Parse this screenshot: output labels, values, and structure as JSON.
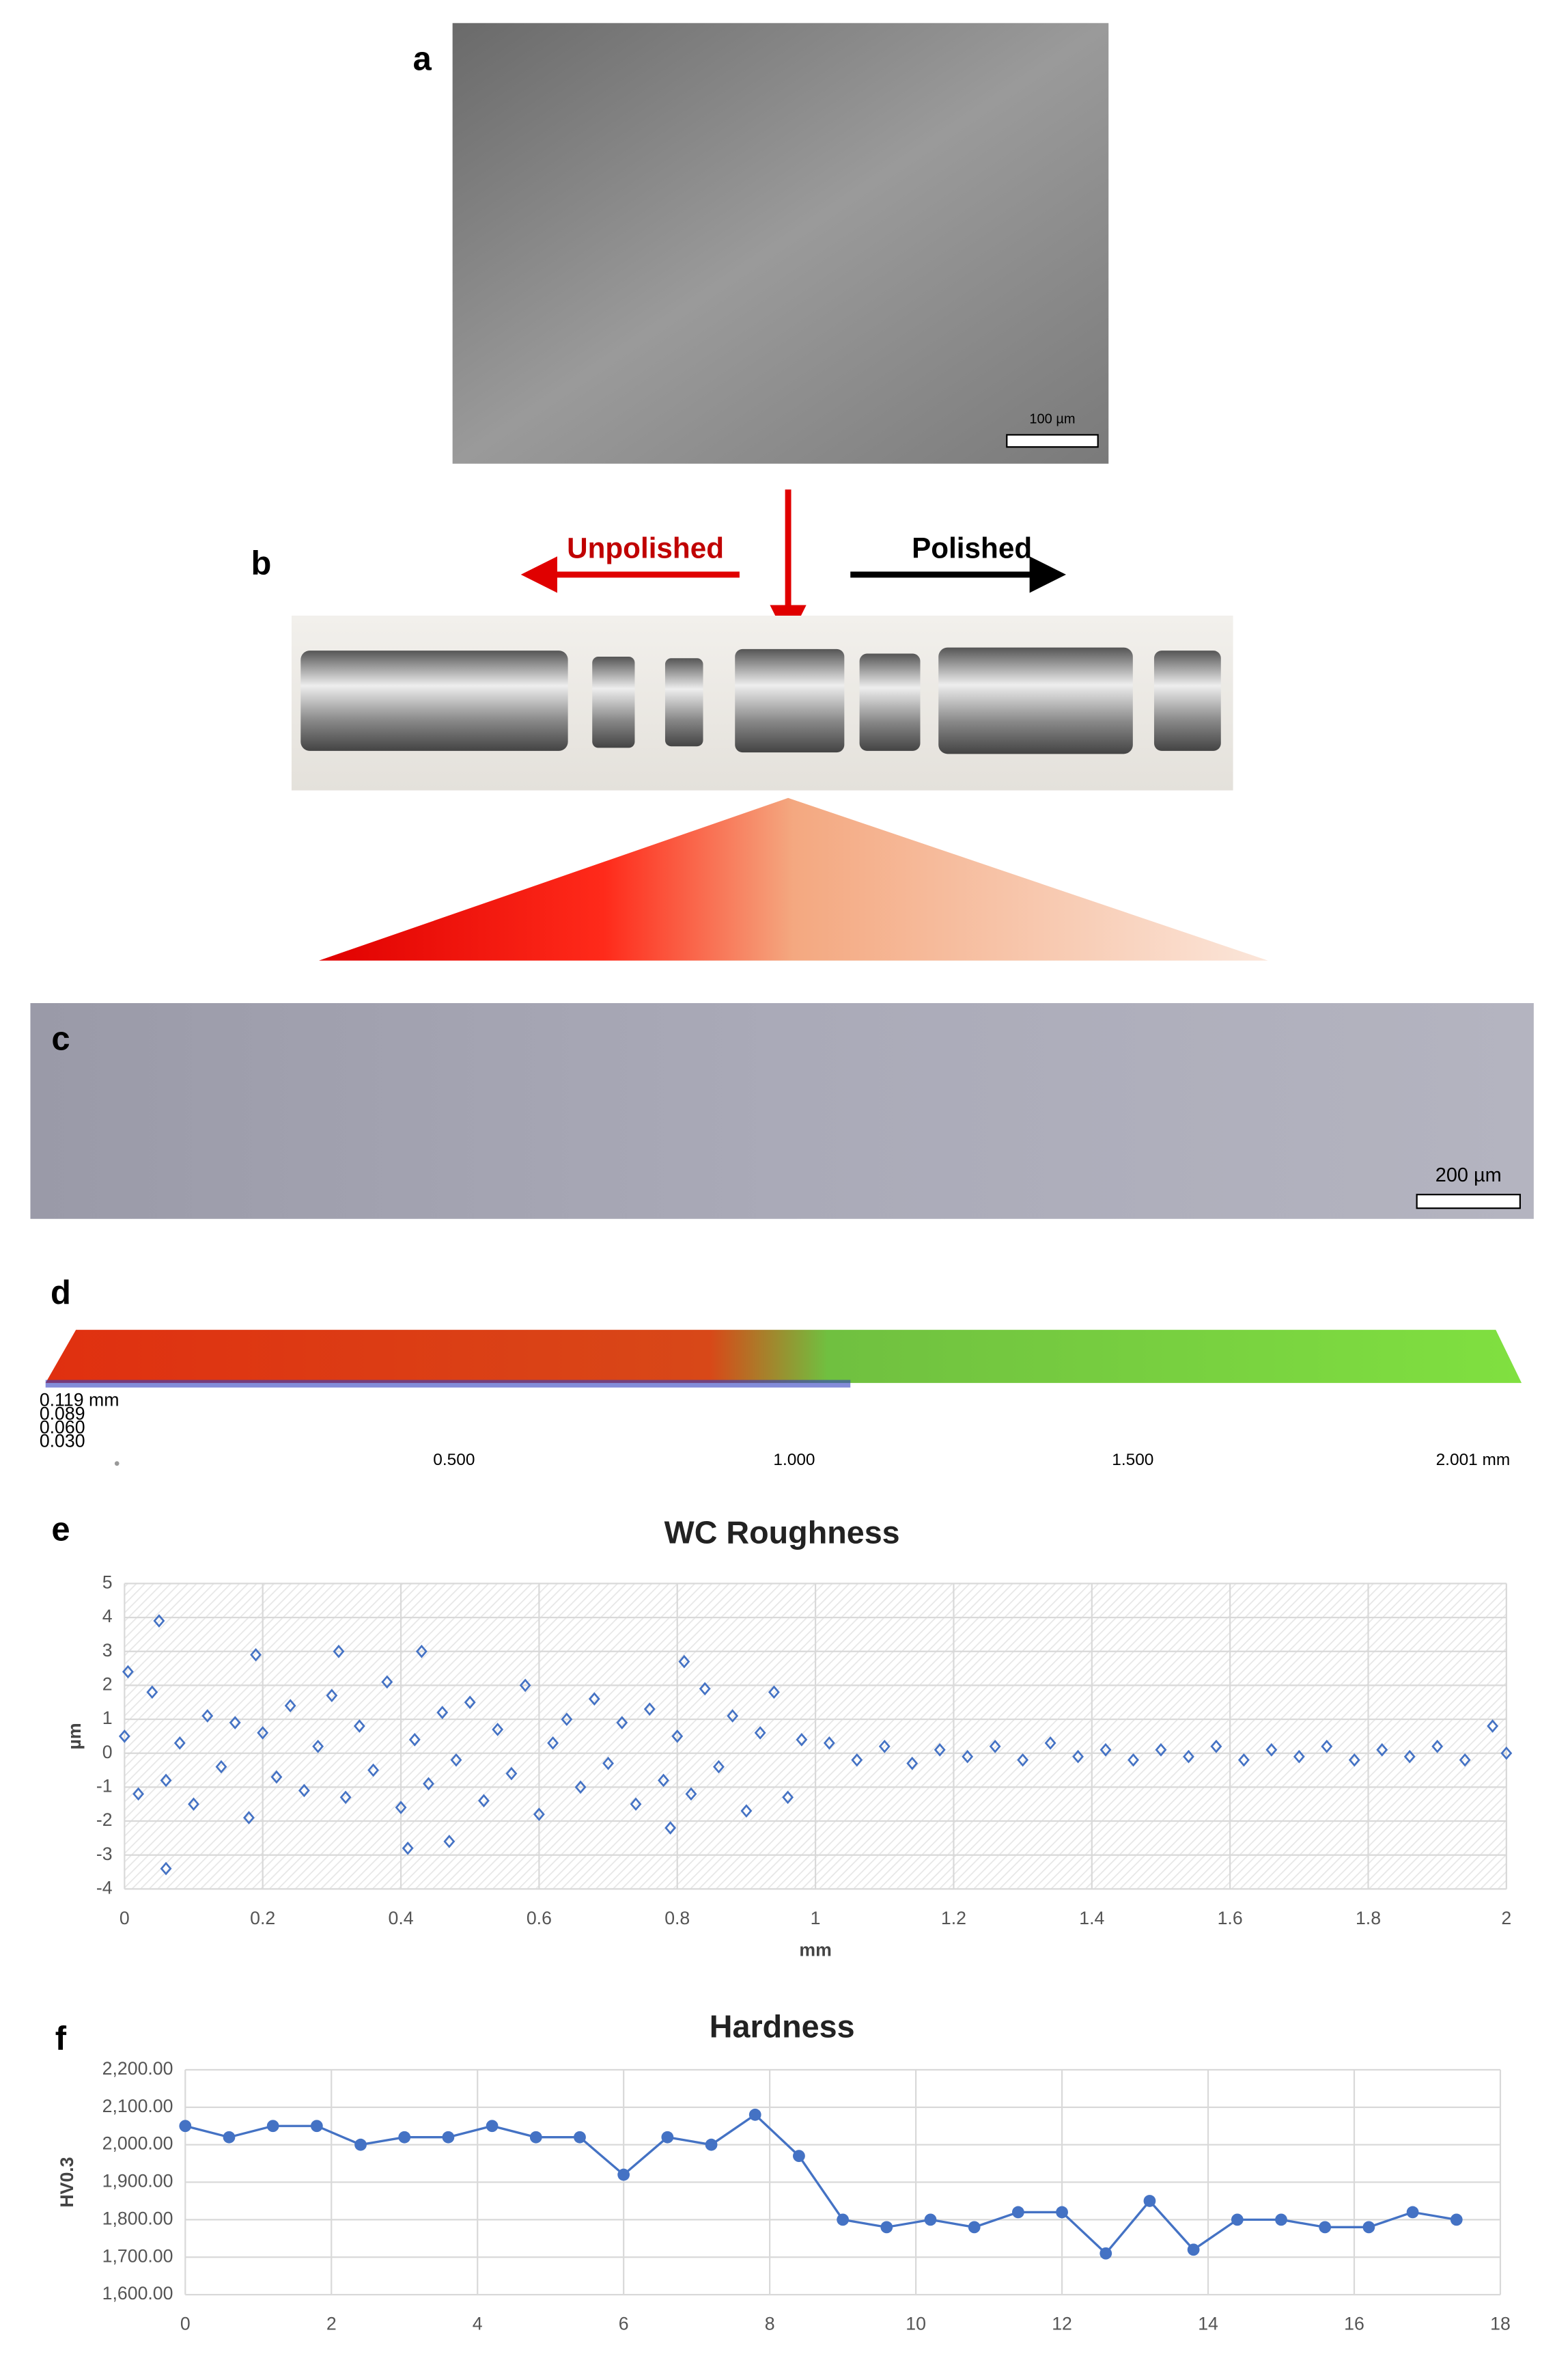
{
  "panels": {
    "a": "a",
    "b": "b",
    "c": "c",
    "d": "d",
    "e": "e",
    "f": "f",
    "scale_a": "100 µm",
    "unpolished": "Unpolished",
    "polished": "Polished",
    "scale_c": "200 µm"
  },
  "profile": {
    "z_labels": [
      "0.119 mm",
      "0.089",
      "0.060",
      "0.030"
    ],
    "x_labels": [
      "0.500",
      "1.000",
      "1.500",
      "2.001 mm"
    ]
  },
  "chart_data": [
    {
      "type": "scatter",
      "title": "WC Roughness",
      "xlabel": "mm",
      "ylabel": "µm",
      "color": "#4472c4",
      "grid": true,
      "x": [
        0,
        0.02,
        0.04,
        0.06,
        0.08,
        0.1,
        0.12,
        0.14,
        0.16,
        0.18,
        0.2,
        0.22,
        0.24,
        0.26,
        0.28,
        0.3,
        0.32,
        0.34,
        0.36,
        0.38,
        0.4,
        0.42,
        0.44,
        0.46,
        0.48,
        0.5,
        0.52,
        0.54,
        0.56,
        0.58,
        0.6,
        0.62,
        0.64,
        0.66,
        0.68,
        0.7,
        0.72,
        0.74,
        0.76,
        0.78,
        0.8,
        0.82,
        0.84,
        0.86,
        0.88,
        0.9,
        0.92,
        0.94,
        0.96,
        0.98,
        0.05,
        0.06,
        0.19,
        0.31,
        0.43,
        0.41,
        0.47,
        0.81,
        0.79,
        0.005,
        1.02,
        1.06,
        1.1,
        1.14,
        1.18,
        1.22,
        1.26,
        1.3,
        1.34,
        1.38,
        1.42,
        1.46,
        1.5,
        1.54,
        1.58,
        1.62,
        1.66,
        1.7,
        1.74,
        1.78,
        1.82,
        1.86,
        1.9,
        1.94,
        1.98,
        2.0
      ],
      "values": [
        0.5,
        -1.2,
        1.8,
        -0.8,
        0.3,
        -1.5,
        1.1,
        -0.4,
        0.9,
        -1.9,
        0.6,
        -0.7,
        1.4,
        -1.1,
        0.2,
        1.7,
        -1.3,
        0.8,
        -0.5,
        2.1,
        -1.6,
        0.4,
        -0.9,
        1.2,
        -0.2,
        1.5,
        -1.4,
        0.7,
        -0.6,
        2.0,
        -1.8,
        0.3,
        1.0,
        -1.0,
        1.6,
        -0.3,
        0.9,
        -1.5,
        1.3,
        -0.8,
        0.5,
        -1.2,
        1.9,
        -0.4,
        1.1,
        -1.7,
        0.6,
        1.8,
        -1.3,
        0.4,
        3.9,
        -3.4,
        2.9,
        3.0,
        3.0,
        -2.8,
        -2.6,
        2.7,
        -2.2,
        2.4,
        0.3,
        -0.2,
        0.2,
        -0.3,
        0.1,
        -0.1,
        0.2,
        -0.2,
        0.3,
        -0.1,
        0.1,
        -0.2,
        0.1,
        -0.1,
        0.2,
        -0.2,
        0.1,
        -0.1,
        0.2,
        -0.2,
        0.1,
        -0.1,
        0.2,
        -0.2,
        0.8,
        0.0
      ],
      "xlim": [
        0,
        2
      ],
      "xticks": [
        0,
        0.2,
        0.4,
        0.6,
        0.8,
        1,
        1.2,
        1.4,
        1.6,
        1.8,
        2
      ],
      "ylim": [
        -4,
        5
      ],
      "yticks": [
        -4,
        -3,
        -2,
        -1,
        0,
        1,
        2,
        3,
        4,
        5
      ]
    },
    {
      "type": "line",
      "title": "Hardness",
      "xlabel": "mm",
      "ylabel": "HV0.3",
      "color": "#4472c4",
      "grid": true,
      "x": [
        0,
        0.6,
        1.2,
        1.8,
        2.4,
        3.0,
        3.6,
        4.2,
        4.8,
        5.4,
        6.0,
        6.6,
        7.2,
        7.8,
        8.4,
        9.0,
        9.6,
        10.2,
        10.8,
        11.4,
        12.0,
        12.6,
        13.2,
        13.8,
        14.4,
        15.0,
        15.6,
        16.2,
        16.8,
        17.4
      ],
      "values": [
        2050,
        2020,
        2050,
        2050,
        2000,
        2020,
        2020,
        2050,
        2020,
        2020,
        1920,
        2020,
        2000,
        2080,
        1970,
        1800,
        1780,
        1800,
        1780,
        1820,
        1820,
        1710,
        1850,
        1720,
        1800,
        1800,
        1780,
        1780,
        1820,
        1800
      ],
      "xlim": [
        0,
        18
      ],
      "xticks": [
        0,
        2,
        4,
        6,
        8,
        10,
        12,
        14,
        16,
        18
      ],
      "ylim": [
        1600,
        2200
      ],
      "yticks": [
        {
          "value": 1600,
          "label": "1,600.00"
        },
        {
          "value": 1700,
          "label": "1,700.00"
        },
        {
          "value": 1800,
          "label": "1,800.00"
        },
        {
          "value": 1900,
          "label": "1,900.00"
        },
        {
          "value": 2000,
          "label": "2,000.00"
        },
        {
          "value": 2100,
          "label": "2,100.00"
        },
        {
          "value": 2200,
          "label": "2,200.00"
        }
      ]
    }
  ]
}
